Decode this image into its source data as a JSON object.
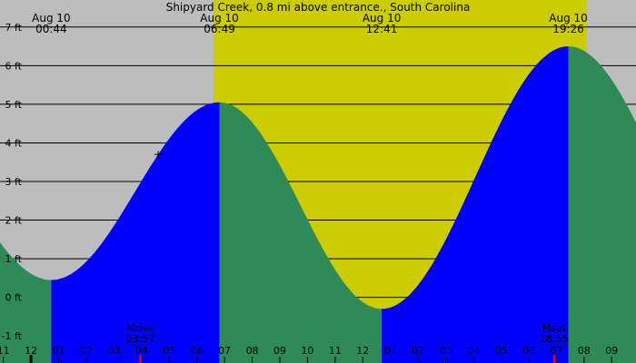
{
  "chart_data": {
    "type": "area",
    "title": "Shipyard Creek, 0.8 mi above entrance., South Carolina",
    "unit": "ft",
    "ylim": [
      -1.7,
      7.7
    ],
    "xlim_hours": [
      -1.2,
      10.8
    ],
    "y_ticks": [
      {
        "value": 7,
        "label": "7 ft"
      },
      {
        "value": 6,
        "label": "6 ft"
      },
      {
        "value": 5,
        "label": "5 ft"
      },
      {
        "value": 4,
        "label": "4 ft"
      },
      {
        "value": 3,
        "label": "3 ft"
      },
      {
        "value": 2,
        "label": "2 ft"
      },
      {
        "value": 1,
        "label": "1 ft"
      },
      {
        "value": 0,
        "label": "0 ft"
      },
      {
        "value": -1,
        "label": "-1 ft"
      }
    ],
    "x_ticks": [
      {
        "hour": -1,
        "label": "11"
      },
      {
        "hour": 0,
        "label": "12"
      },
      {
        "hour": 1,
        "label": "01"
      },
      {
        "hour": 2,
        "label": "02"
      },
      {
        "hour": 3,
        "label": "03"
      },
      {
        "hour": 4,
        "label": "04"
      },
      {
        "hour": 5,
        "label": "05"
      },
      {
        "hour": 6,
        "label": "06"
      },
      {
        "hour": 7,
        "label": "07"
      },
      {
        "hour": 8,
        "label": "08"
      },
      {
        "hour": 9,
        "label": "09"
      },
      {
        "hour": 10,
        "label": "10"
      },
      {
        "hour": 11,
        "label": "11"
      },
      {
        "hour": 12,
        "label": "12"
      },
      {
        "hour": 13,
        "label": "01"
      },
      {
        "hour": 14,
        "label": "02"
      },
      {
        "hour": 15,
        "label": "03"
      },
      {
        "hour": 16,
        "label": "04"
      },
      {
        "hour": 17,
        "label": "05"
      },
      {
        "hour": 18,
        "label": "06"
      },
      {
        "hour": 19,
        "label": "07"
      },
      {
        "hour": 20,
        "label": "08"
      },
      {
        "hour": 21,
        "label": "09"
      }
    ],
    "tides": [
      {
        "date": "Aug 10",
        "time": "00:44",
        "hour": 0.733,
        "height": 0.45,
        "kind": "low"
      },
      {
        "date": "Aug 10",
        "time": "06:49",
        "hour": 6.817,
        "height": 5.05,
        "kind": "high"
      },
      {
        "date": "Aug 10",
        "time": "12:41",
        "hour": 12.683,
        "height": -0.3,
        "kind": "low"
      },
      {
        "date": "Aug 10",
        "time": "19:26",
        "hour": 19.433,
        "height": 6.5,
        "kind": "high"
      }
    ],
    "boundary_heights": {
      "start": 1.75,
      "end": 5.05
    },
    "daylight": {
      "start_hour": 6.6,
      "end_hour": 20.1
    },
    "moon_events": [
      {
        "label": "Mrise",
        "time": "03:57",
        "hour": 3.95
      },
      {
        "label": "Mset",
        "time": "18:55",
        "hour": 18.917
      }
    ],
    "now_hour": 4.6,
    "colors": {
      "night": "#bdbdbd",
      "day": "#cccc00",
      "falling": "#2e8b57",
      "rising": "#0000ff",
      "grid": "#000000",
      "text": "#000000",
      "moon_tick": "#ff0000"
    }
  }
}
